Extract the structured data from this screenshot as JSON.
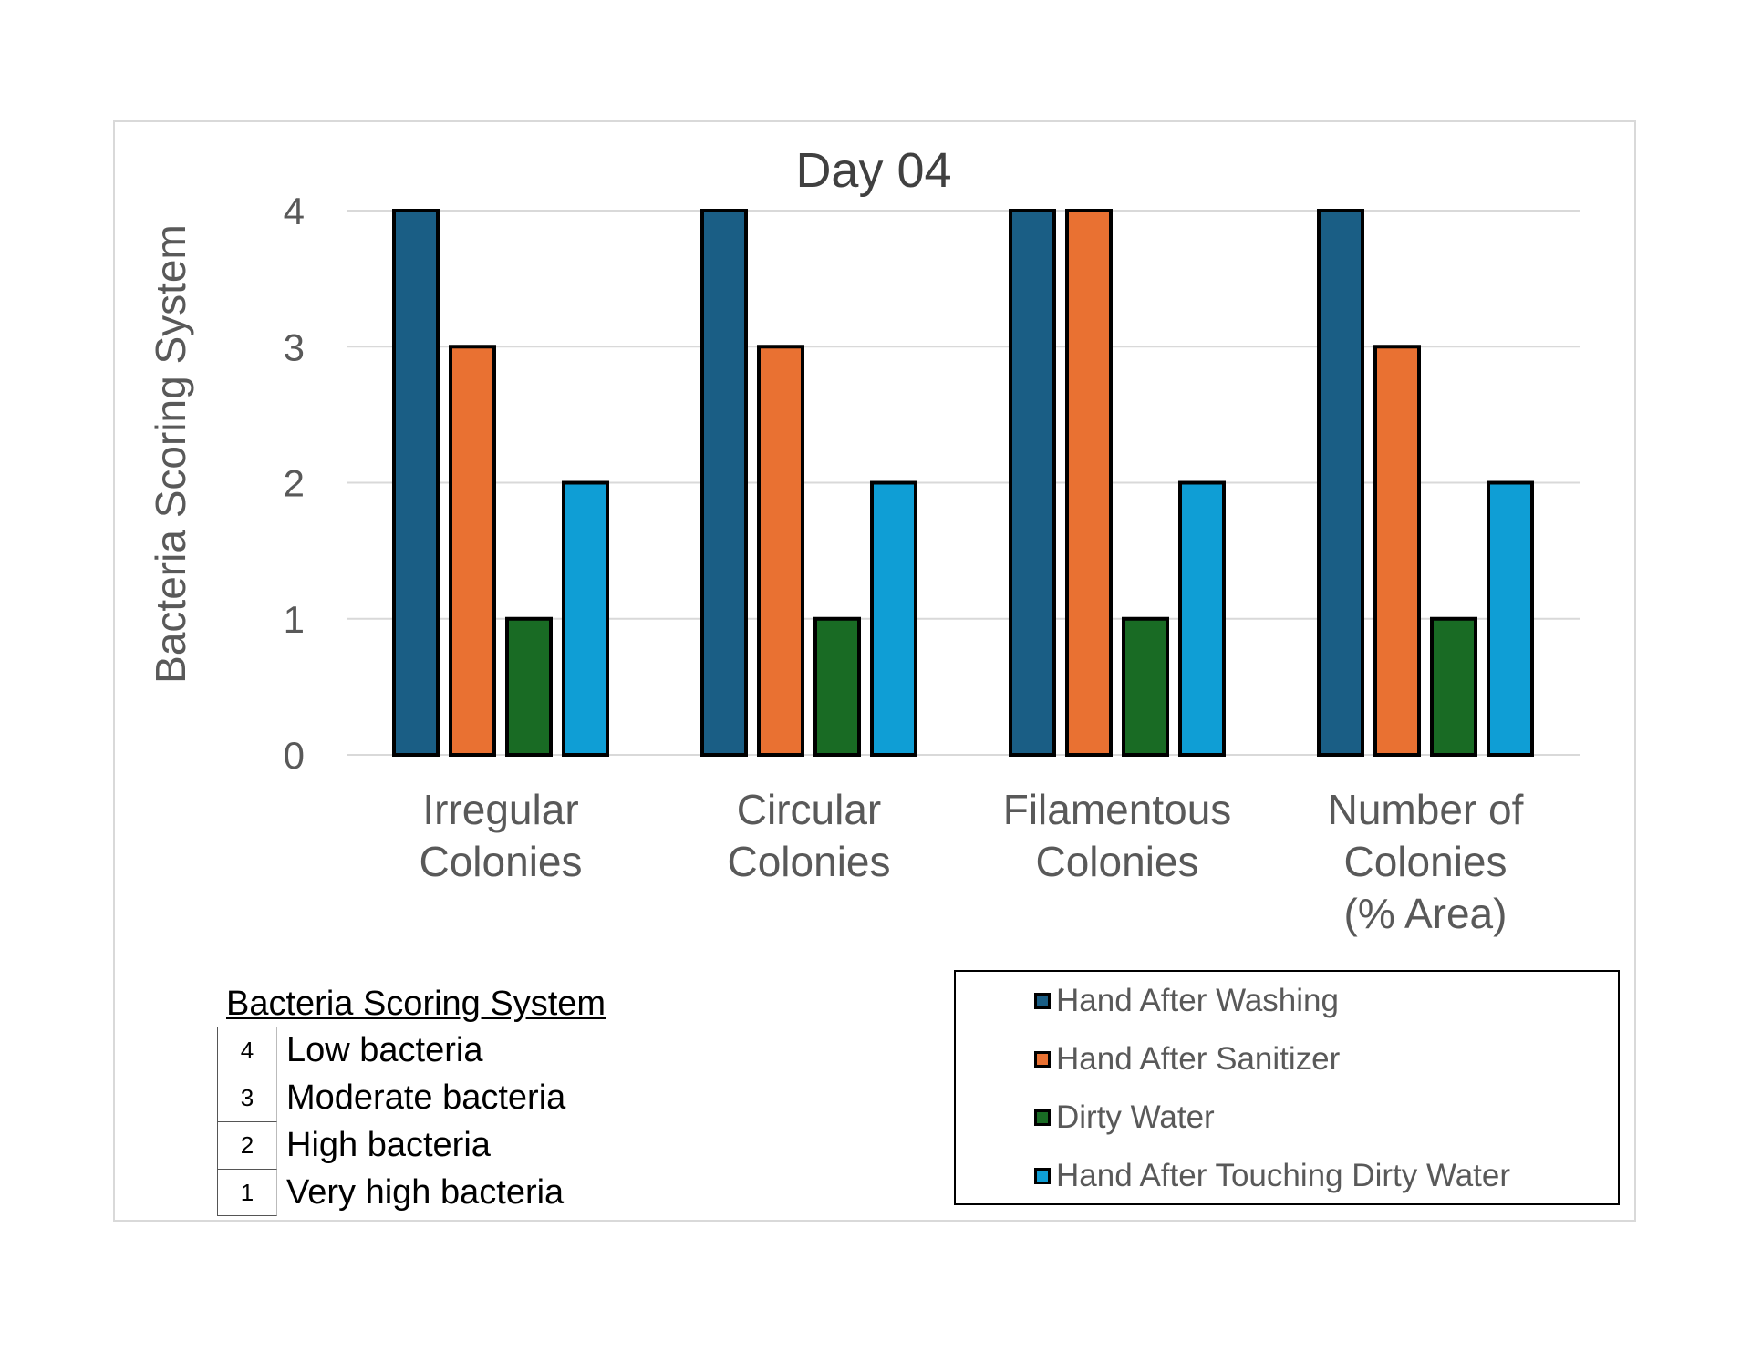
{
  "chart_data": {
    "type": "bar",
    "title": "Day 04",
    "ylabel": "Bacteria Scoring System",
    "xlabel": "",
    "ylim": [
      0,
      4
    ],
    "yticks": [
      0,
      1,
      2,
      3,
      4
    ],
    "grid": true,
    "categories": [
      [
        "Irregular",
        "Colonies"
      ],
      [
        "Circular",
        "Colonies"
      ],
      [
        "Filamentous",
        "Colonies"
      ],
      [
        "Number of",
        "Colonies",
        "(% Area)"
      ]
    ],
    "series": [
      {
        "name": "Hand After Washing",
        "color": "#1a5e85",
        "values": [
          4,
          4,
          4,
          4
        ]
      },
      {
        "name": "Hand After Sanitizer",
        "color": "#e97132",
        "values": [
          3,
          3,
          4,
          3
        ]
      },
      {
        "name": "Dirty Water",
        "color": "#196b24",
        "values": [
          1,
          1,
          1,
          1
        ]
      },
      {
        "name": "Hand After Touching Dirty Water",
        "color": "#0f9ed5",
        "values": [
          2,
          2,
          2,
          2
        ]
      }
    ],
    "legend_position": "bottom-right"
  },
  "scoring_table": {
    "title": "Bacteria Scoring System",
    "rows": [
      {
        "score": "4",
        "label": "Low bacteria"
      },
      {
        "score": "3",
        "label": "Moderate bacteria"
      },
      {
        "score": "2",
        "label": "High bacteria"
      },
      {
        "score": "1",
        "label": "Very high bacteria"
      }
    ]
  }
}
